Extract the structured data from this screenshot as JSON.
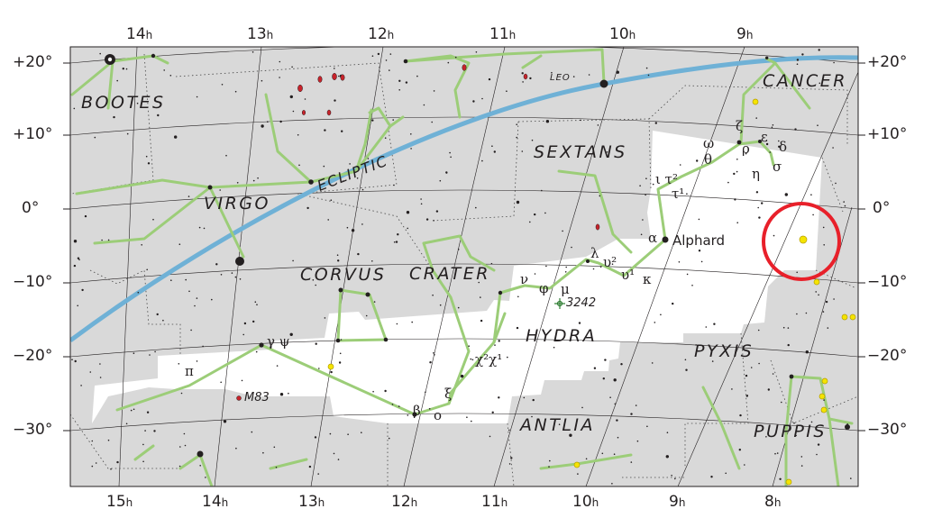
{
  "chart": {
    "ra_labels_top": [
      "14",
      "13",
      "12",
      "11",
      "10",
      "9"
    ],
    "ra_labels_bottom": [
      "15",
      "14",
      "13",
      "12",
      "11",
      "10",
      "9",
      "8"
    ],
    "hour_suffix": "h",
    "dec_labels": [
      "+20°",
      "+10°",
      "0°",
      "−10°",
      "−20°",
      "−30°"
    ],
    "constellations": [
      "BOOTES",
      "LEO",
      "CANCER",
      "SEXTANS",
      "VIRGO",
      "CORVUS",
      "CRATER",
      "HYDRA",
      "PYXIS",
      "ANTLIA",
      "PUPPIS"
    ],
    "ecliptic_label": "ECLIPTIC",
    "stars": {
      "alphard": "Alphard",
      "alpha": "α",
      "lambda": "λ",
      "upsilon2": "υ²",
      "upsilon1": "υ¹",
      "kappa": "κ",
      "nu": "ν",
      "phi": "φ",
      "mu": "μ",
      "iota_tau2": "ι τ²",
      "tau1": "τ¹",
      "omega": "ω",
      "theta": "θ",
      "zeta": "ζ",
      "epsilon": "ε",
      "rho": "ρ",
      "delta": "δ",
      "eta": "η",
      "sigma": "σ",
      "chi": "χ²χ¹",
      "xi": "ξ",
      "beta": "β",
      "omicron": "ο",
      "gamma_psi": "γ ψ",
      "pi": "π"
    },
    "deep_sky": {
      "ngc3242": "3242",
      "m83": "M83"
    },
    "colors": {
      "ecliptic": "#6fb1d6",
      "stick_figure": "#9ccd78",
      "outside_background": "#d9d9d9",
      "hydra_highlight": "#ffffff",
      "marker_circle": "#e8202a",
      "galaxy": "#c8232b",
      "cluster": "#f5e400"
    },
    "marker": "red circle near RA 8h20m, Dec −3°"
  }
}
